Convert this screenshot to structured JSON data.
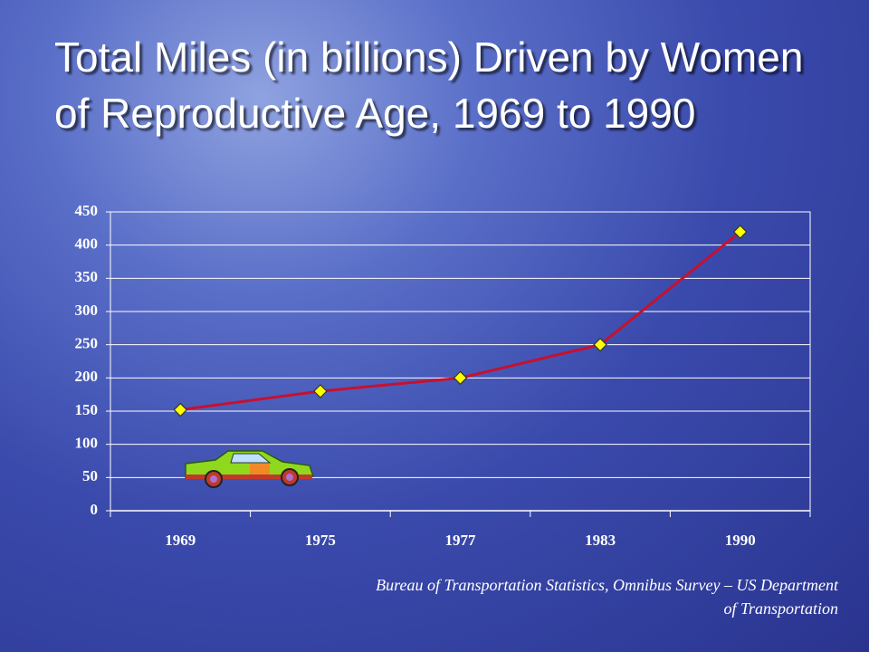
{
  "chart_data": {
    "type": "line",
    "title": "Total Miles (in billions) Driven by Women of Reproductive Age, 1969 to 1990",
    "categories": [
      "1969",
      "1975",
      "1977",
      "1983",
      "1990"
    ],
    "values": [
      152,
      180,
      200,
      250,
      420
    ],
    "color": "#c8102e",
    "marker_color": "#ffff00",
    "ylim": [
      0,
      450
    ],
    "yticks": [
      0,
      50,
      100,
      150,
      200,
      250,
      300,
      350,
      400,
      450
    ],
    "grid": true,
    "source": "Bureau of Transportation Statistics, Omnibus Survey – US Department of Transportation"
  }
}
